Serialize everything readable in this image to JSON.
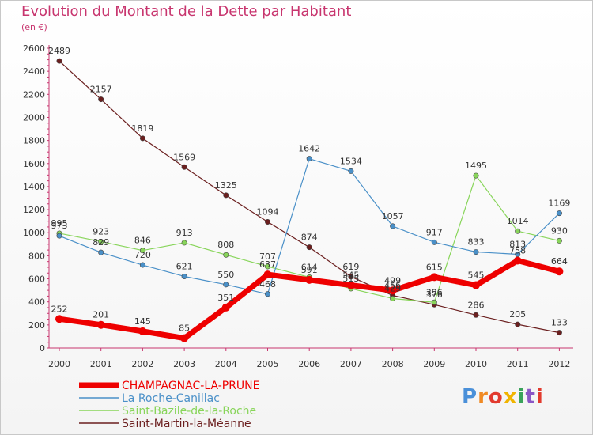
{
  "title": "Evolution du Montant de la Dette par Habitant",
  "unit": "(en €)",
  "logo": {
    "text": "Proxiti",
    "colors": [
      "#4a90d9",
      "#f08a24",
      "#e23a2e",
      "#f0b400",
      "#3aa35b",
      "#8b57c6",
      "#e23a2e"
    ]
  },
  "chart_data": {
    "type": "line",
    "x": [
      "2000",
      "2001",
      "2002",
      "2003",
      "2004",
      "2005",
      "2006",
      "2007",
      "2008",
      "2009",
      "2010",
      "2011",
      "2012"
    ],
    "ylim": [
      0,
      2600
    ],
    "yticks": [
      "0",
      "200",
      "400",
      "600",
      "800",
      "1000",
      "1200",
      "1400",
      "1600",
      "1800",
      "2000",
      "2200",
      "2400",
      "2600"
    ],
    "grid": false,
    "legend_position": "bottom-left",
    "series": [
      {
        "name": "CHAMPAGNAC-LA-PRUNE",
        "color": "#ee0000",
        "values": [
          252,
          201,
          145,
          85,
          351,
          637,
          591,
          545,
          499,
          615,
          545,
          758,
          664
        ]
      },
      {
        "name": "La Roche-Canillac",
        "color": "#4a90c8",
        "values": [
          973,
          829,
          720,
          621,
          550,
          468,
          1642,
          1534,
          1057,
          917,
          833,
          813,
          1169
        ]
      },
      {
        "name": "Saint-Bazile-de-la-Roche",
        "color": "#88d55a",
        "values": [
          995,
          923,
          846,
          913,
          808,
          707,
          614,
          515,
          429,
          396,
          1495,
          1014,
          930
        ]
      },
      {
        "name": "Saint-Martin-la-Méanne",
        "color": "#6b1f1f",
        "values": [
          2489,
          2157,
          1819,
          1569,
          1325,
          1094,
          874,
          619,
          456,
          376,
          286,
          205,
          133
        ]
      }
    ]
  }
}
